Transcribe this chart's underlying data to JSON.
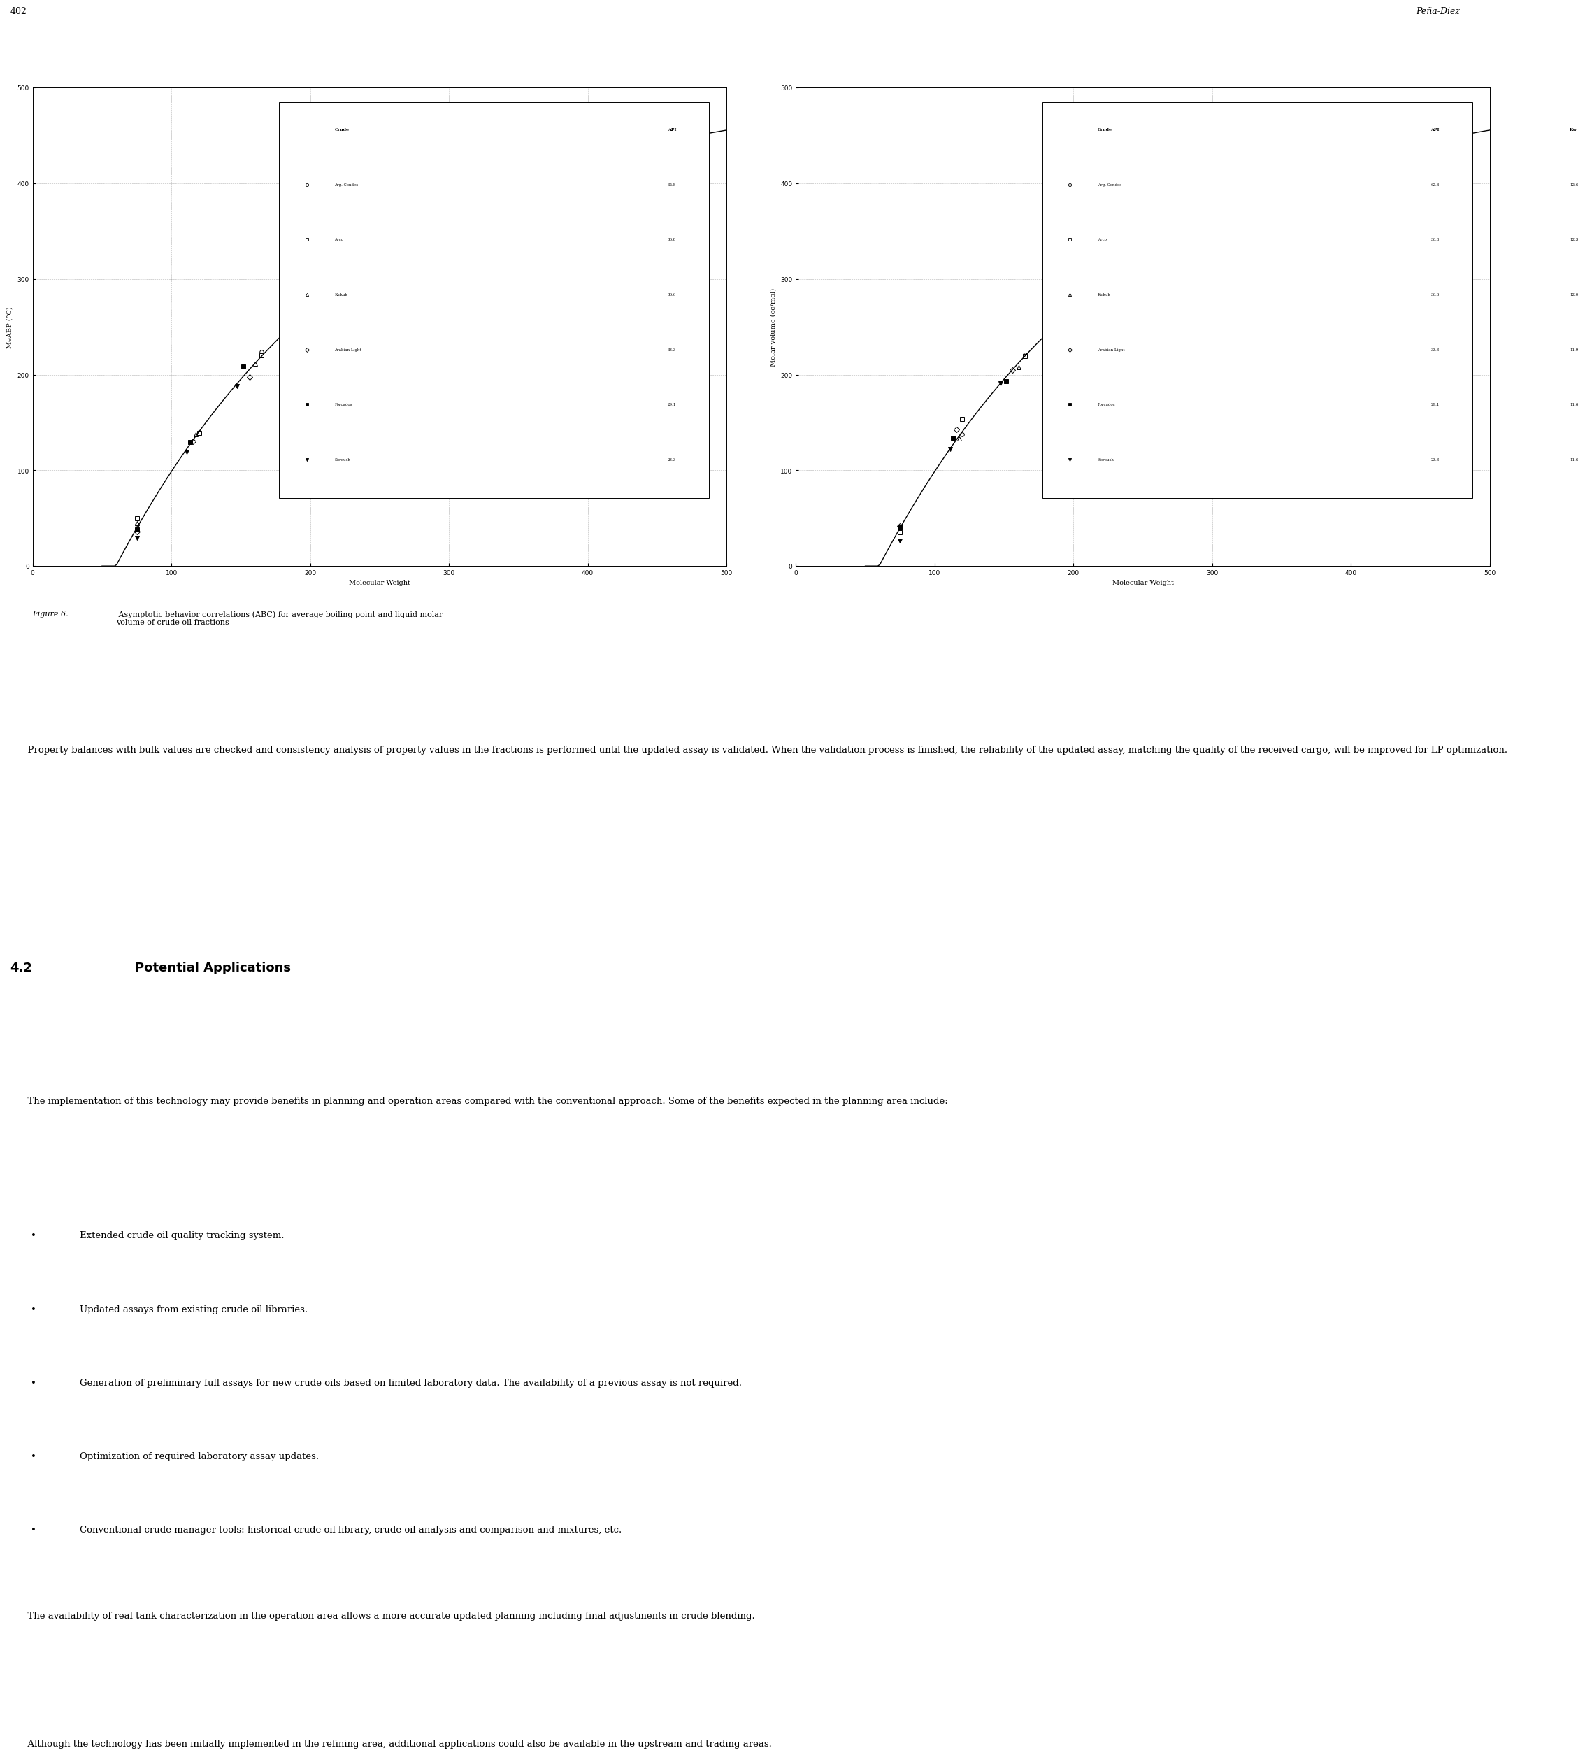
{
  "page_number": "402",
  "page_header_right": "Peña-Diez",
  "figure_caption_italic": "Figure 6.",
  "figure_caption_normal": " Asymptotic behavior correlations (ABC) for average boiling point and liquid molar\nvolume of crude oil fractions",
  "left_plot": {
    "ylabel": "MeABP (°C)",
    "xlabel": "Molecular Weight",
    "xlim": [
      0,
      500
    ],
    "ylim": [
      0,
      500
    ],
    "xticks": [
      0,
      100,
      200,
      300,
      400,
      500
    ],
    "yticks": [
      0,
      100,
      200,
      300,
      400,
      500
    ]
  },
  "right_plot": {
    "ylabel": "Molar volume (cc/mol)",
    "xlabel": "Molecular Weight",
    "xlim": [
      0,
      500
    ],
    "ylim": [
      0,
      500
    ],
    "xticks": [
      0,
      100,
      200,
      300,
      400,
      500
    ],
    "yticks": [
      0,
      100,
      200,
      300,
      400,
      500
    ]
  },
  "legend_entries": [
    {
      "label": "Arg. Condes",
      "api": "62.8",
      "kw": "12.6",
      "marker": "o",
      "filled": false
    },
    {
      "label": "Arco",
      "api": "36.8",
      "kw": "12.3",
      "marker": "s",
      "filled": false
    },
    {
      "label": "Kirkuk",
      "api": "36.6",
      "kw": "12.0",
      "marker": "^",
      "filled": false
    },
    {
      "label": "Arabian Light",
      "api": "33.3",
      "kw": "11.9",
      "marker": "D",
      "filled": false
    },
    {
      "label": "Forcados",
      "api": "29.1",
      "kw": "11.6",
      "marker": "s",
      "filled": true
    },
    {
      "label": "Soroush",
      "api": "23.3",
      "kw": "11.6",
      "marker": "v",
      "filled": true
    }
  ],
  "paragraph1": "      Property balances with bulk values are checked and consistency analysis of property values in the fractions is performed until the updated assay is validated. When the validation process is finished, the reliability of the updated assay, matching the quality of the received cargo, will be improved for LP optimization.",
  "section_number": "4.2",
  "section_title": "Potential Applications",
  "paragraph2": "      The implementation of this technology may provide benefits in planning and operation areas compared with the conventional approach. Some of the benefits expected in the planning area include:",
  "bullet_points": [
    "Extended crude oil quality tracking system.",
    "Updated assays from existing crude oil libraries.",
    "Generation of preliminary full assays for new crude oils based on limited laboratory data. The availability of a previous assay is not required.",
    "Optimization of required laboratory assay updates.",
    "Conventional crude manager tools: historical crude oil library, crude oil analysis and comparison and mixtures, etc."
  ],
  "paragraph3": "      The availability of real tank characterization in the operation area allows a more accurate updated planning including final adjustments in crude blending.",
  "paragraph4": "      Although the technology has been initially implemented in the refining area, additional applications could also be available in the upstream and trading areas."
}
